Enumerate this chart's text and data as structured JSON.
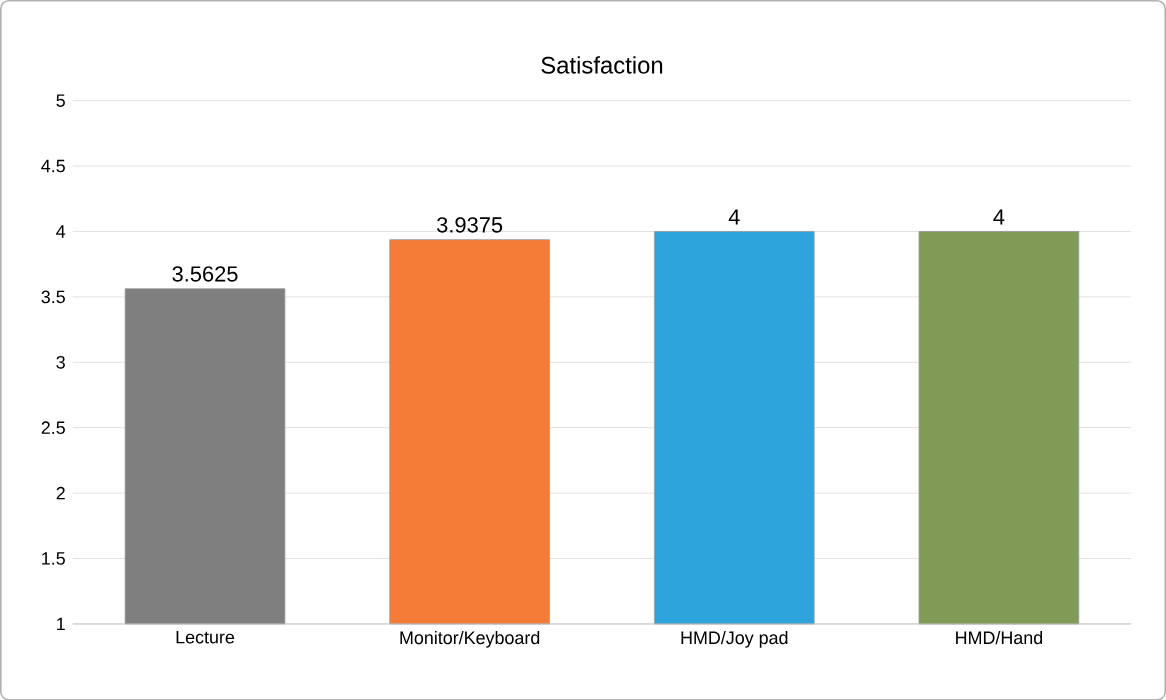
{
  "chart_data": {
    "type": "bar",
    "title": "Satisfaction",
    "categories": [
      "Lecture",
      "Monitor/Keyboard",
      "HMD/Joy pad",
      "HMD/Hand"
    ],
    "values": [
      3.5625,
      3.9375,
      4,
      4
    ],
    "colors": [
      "#7f7f7f",
      "#f47c36",
      "#2ea4dc",
      "#7f9b55"
    ],
    "ylim": [
      1,
      5
    ],
    "yticks": [
      1,
      1.5,
      2,
      2.5,
      3,
      3.5,
      4,
      4.5,
      5
    ],
    "grid": "y",
    "data_labels": true
  }
}
